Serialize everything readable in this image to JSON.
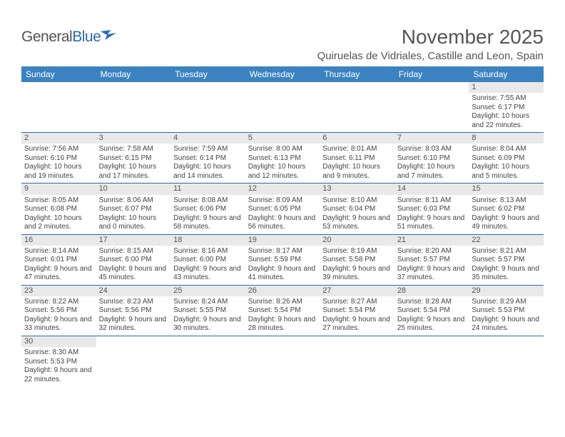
{
  "logo": {
    "text_gray": "General",
    "text_blue": "Blue"
  },
  "title": "November 2025",
  "location": "Quiruelas de Vidriales, Castille and Leon, Spain",
  "colors": {
    "header_bg": "#3b83c0",
    "header_text": "#ffffff",
    "daynum_bg": "#e9e9e9",
    "row_border": "#2a6ab0",
    "title_color": "#555555",
    "body_text": "#444444"
  },
  "weekdays": [
    "Sunday",
    "Monday",
    "Tuesday",
    "Wednesday",
    "Thursday",
    "Friday",
    "Saturday"
  ],
  "weeks": [
    [
      null,
      null,
      null,
      null,
      null,
      null,
      {
        "n": "1",
        "sr": "Sunrise: 7:55 AM",
        "ss": "Sunset: 6:17 PM",
        "dl": "Daylight: 10 hours and 22 minutes."
      }
    ],
    [
      {
        "n": "2",
        "sr": "Sunrise: 7:56 AM",
        "ss": "Sunset: 6:16 PM",
        "dl": "Daylight: 10 hours and 19 minutes."
      },
      {
        "n": "3",
        "sr": "Sunrise: 7:58 AM",
        "ss": "Sunset: 6:15 PM",
        "dl": "Daylight: 10 hours and 17 minutes."
      },
      {
        "n": "4",
        "sr": "Sunrise: 7:59 AM",
        "ss": "Sunset: 6:14 PM",
        "dl": "Daylight: 10 hours and 14 minutes."
      },
      {
        "n": "5",
        "sr": "Sunrise: 8:00 AM",
        "ss": "Sunset: 6:13 PM",
        "dl": "Daylight: 10 hours and 12 minutes."
      },
      {
        "n": "6",
        "sr": "Sunrise: 8:01 AM",
        "ss": "Sunset: 6:11 PM",
        "dl": "Daylight: 10 hours and 9 minutes."
      },
      {
        "n": "7",
        "sr": "Sunrise: 8:03 AM",
        "ss": "Sunset: 6:10 PM",
        "dl": "Daylight: 10 hours and 7 minutes."
      },
      {
        "n": "8",
        "sr": "Sunrise: 8:04 AM",
        "ss": "Sunset: 6:09 PM",
        "dl": "Daylight: 10 hours and 5 minutes."
      }
    ],
    [
      {
        "n": "9",
        "sr": "Sunrise: 8:05 AM",
        "ss": "Sunset: 6:08 PM",
        "dl": "Daylight: 10 hours and 2 minutes."
      },
      {
        "n": "10",
        "sr": "Sunrise: 8:06 AM",
        "ss": "Sunset: 6:07 PM",
        "dl": "Daylight: 10 hours and 0 minutes."
      },
      {
        "n": "11",
        "sr": "Sunrise: 8:08 AM",
        "ss": "Sunset: 6:06 PM",
        "dl": "Daylight: 9 hours and 58 minutes."
      },
      {
        "n": "12",
        "sr": "Sunrise: 8:09 AM",
        "ss": "Sunset: 6:05 PM",
        "dl": "Daylight: 9 hours and 56 minutes."
      },
      {
        "n": "13",
        "sr": "Sunrise: 8:10 AM",
        "ss": "Sunset: 6:04 PM",
        "dl": "Daylight: 9 hours and 53 minutes."
      },
      {
        "n": "14",
        "sr": "Sunrise: 8:11 AM",
        "ss": "Sunset: 6:03 PM",
        "dl": "Daylight: 9 hours and 51 minutes."
      },
      {
        "n": "15",
        "sr": "Sunrise: 8:13 AM",
        "ss": "Sunset: 6:02 PM",
        "dl": "Daylight: 9 hours and 49 minutes."
      }
    ],
    [
      {
        "n": "16",
        "sr": "Sunrise: 8:14 AM",
        "ss": "Sunset: 6:01 PM",
        "dl": "Daylight: 9 hours and 47 minutes."
      },
      {
        "n": "17",
        "sr": "Sunrise: 8:15 AM",
        "ss": "Sunset: 6:00 PM",
        "dl": "Daylight: 9 hours and 45 minutes."
      },
      {
        "n": "18",
        "sr": "Sunrise: 8:16 AM",
        "ss": "Sunset: 6:00 PM",
        "dl": "Daylight: 9 hours and 43 minutes."
      },
      {
        "n": "19",
        "sr": "Sunrise: 8:17 AM",
        "ss": "Sunset: 5:59 PM",
        "dl": "Daylight: 9 hours and 41 minutes."
      },
      {
        "n": "20",
        "sr": "Sunrise: 8:19 AM",
        "ss": "Sunset: 5:58 PM",
        "dl": "Daylight: 9 hours and 39 minutes."
      },
      {
        "n": "21",
        "sr": "Sunrise: 8:20 AM",
        "ss": "Sunset: 5:57 PM",
        "dl": "Daylight: 9 hours and 37 minutes."
      },
      {
        "n": "22",
        "sr": "Sunrise: 8:21 AM",
        "ss": "Sunset: 5:57 PM",
        "dl": "Daylight: 9 hours and 35 minutes."
      }
    ],
    [
      {
        "n": "23",
        "sr": "Sunrise: 8:22 AM",
        "ss": "Sunset: 5:56 PM",
        "dl": "Daylight: 9 hours and 33 minutes."
      },
      {
        "n": "24",
        "sr": "Sunrise: 8:23 AM",
        "ss": "Sunset: 5:56 PM",
        "dl": "Daylight: 9 hours and 32 minutes."
      },
      {
        "n": "25",
        "sr": "Sunrise: 8:24 AM",
        "ss": "Sunset: 5:55 PM",
        "dl": "Daylight: 9 hours and 30 minutes."
      },
      {
        "n": "26",
        "sr": "Sunrise: 8:26 AM",
        "ss": "Sunset: 5:54 PM",
        "dl": "Daylight: 9 hours and 28 minutes."
      },
      {
        "n": "27",
        "sr": "Sunrise: 8:27 AM",
        "ss": "Sunset: 5:54 PM",
        "dl": "Daylight: 9 hours and 27 minutes."
      },
      {
        "n": "28",
        "sr": "Sunrise: 8:28 AM",
        "ss": "Sunset: 5:54 PM",
        "dl": "Daylight: 9 hours and 25 minutes."
      },
      {
        "n": "29",
        "sr": "Sunrise: 8:29 AM",
        "ss": "Sunset: 5:53 PM",
        "dl": "Daylight: 9 hours and 24 minutes."
      }
    ],
    [
      {
        "n": "30",
        "sr": "Sunrise: 8:30 AM",
        "ss": "Sunset: 5:53 PM",
        "dl": "Daylight: 9 hours and 22 minutes."
      },
      null,
      null,
      null,
      null,
      null,
      null
    ]
  ]
}
